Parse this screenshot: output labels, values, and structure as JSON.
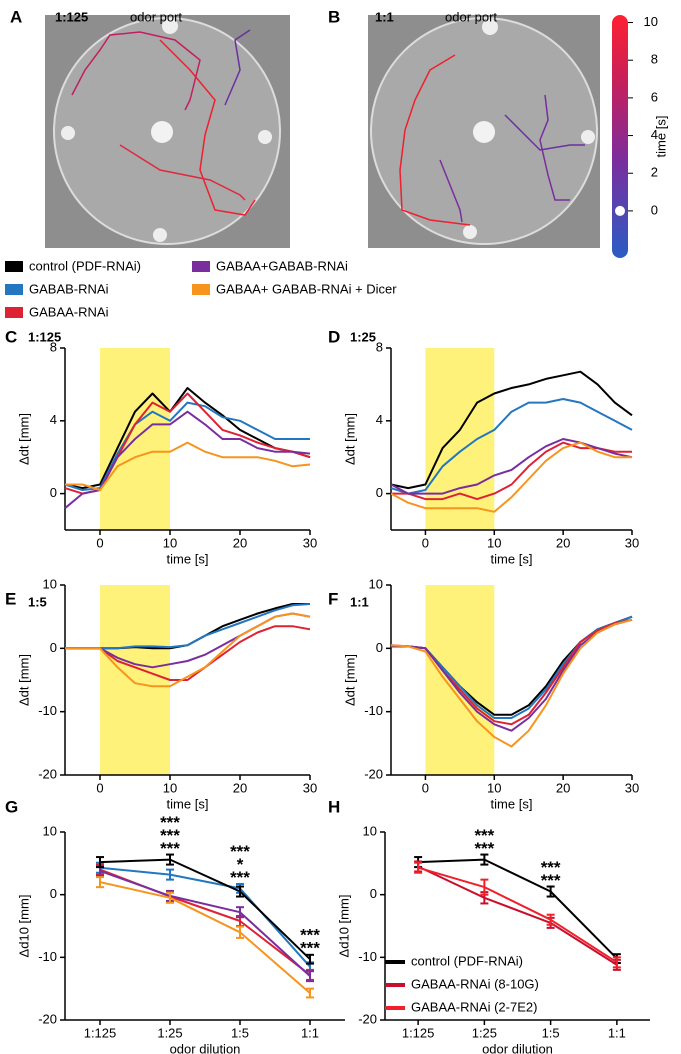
{
  "photo_panels": [
    {
      "panel": "A",
      "title": "1:125",
      "caption": "odor port"
    },
    {
      "panel": "B",
      "title": "1:1",
      "caption": "odor port"
    }
  ],
  "legend": [
    {
      "name": "control (PDF-RNAi)",
      "color": "#000000"
    },
    {
      "name": "GABAB-RNAi",
      "color": "#2277c0"
    },
    {
      "name": "GABAA-RNAi",
      "color": "#dd2233"
    },
    {
      "name": "GABAA+GABAB-RNAi",
      "color": "#7a2e9e"
    },
    {
      "name": "GABAA+ GABAB-RNAi + Dicer",
      "color": "#f7941d"
    }
  ],
  "chart_data": [
    {
      "type": "colorbar",
      "label": "time [s]",
      "lim": [
        -2.5,
        10.4
      ],
      "ticks": [
        0,
        2,
        4,
        6,
        8,
        10
      ]
    },
    {
      "type": "line",
      "panel": "C",
      "title": "1:125",
      "xlabel": "time [s]",
      "ylabel": "Δdt [mm]",
      "x": [
        -5,
        -2.5,
        0,
        2.5,
        5,
        7.5,
        10,
        12.5,
        15,
        17.5,
        20,
        22.5,
        25,
        27.5,
        30
      ],
      "xlim": [
        -5,
        30
      ],
      "xticks": [
        0,
        10,
        20,
        30
      ],
      "ylim": [
        -2,
        8
      ],
      "yticks": [
        0,
        4,
        8
      ],
      "stimulus": [
        0,
        10
      ],
      "series": [
        {
          "color": "#000000",
          "values": [
            0.5,
            0.3,
            0.5,
            2.5,
            4.5,
            5.5,
            4.5,
            5.8,
            5,
            4.3,
            3.5,
            3,
            2.5,
            2.3,
            2
          ]
        },
        {
          "color": "#2277c0",
          "values": [
            0.5,
            0.2,
            0.3,
            2.2,
            3.8,
            4.5,
            4,
            5,
            4.8,
            4.2,
            4,
            3.5,
            3,
            3,
            3
          ]
        },
        {
          "color": "#dd2233",
          "values": [
            0.3,
            0,
            0.2,
            2,
            3.8,
            5,
            4.5,
            5.5,
            4.5,
            3.5,
            3.2,
            2.8,
            2.5,
            2.3,
            2
          ]
        },
        {
          "color": "#7a2e9e",
          "values": [
            -0.8,
            0,
            0.2,
            2,
            3,
            3.8,
            3.8,
            4.5,
            3.8,
            3,
            3,
            2.5,
            2.3,
            2.3,
            2.2
          ]
        },
        {
          "color": "#f7941d",
          "values": [
            0.5,
            0.5,
            0.2,
            1.5,
            2,
            2.3,
            2.3,
            2.8,
            2.3,
            2,
            2,
            2,
            1.8,
            1.5,
            1.6
          ]
        }
      ]
    },
    {
      "type": "line",
      "panel": "D",
      "title": "1:25",
      "xlabel": "time [s]",
      "ylabel": "Δdt [mm]",
      "x": [
        -5,
        -2.5,
        0,
        2.5,
        5,
        7.5,
        10,
        12.5,
        15,
        17.5,
        20,
        22.5,
        25,
        27.5,
        30
      ],
      "xlim": [
        -5,
        30
      ],
      "xticks": [
        0,
        10,
        20,
        30
      ],
      "ylim": [
        -2,
        8
      ],
      "yticks": [
        0,
        4,
        8
      ],
      "stimulus": [
        0,
        10
      ],
      "series": [
        {
          "color": "#000000",
          "values": [
            0.5,
            0.3,
            0.5,
            2.5,
            3.5,
            5,
            5.5,
            5.8,
            6,
            6.3,
            6.5,
            6.7,
            6,
            5,
            4.3
          ]
        },
        {
          "color": "#2277c0",
          "values": [
            0.3,
            0,
            0.2,
            1.5,
            2.3,
            3,
            3.5,
            4.5,
            5,
            5,
            5.2,
            5,
            4.5,
            4,
            3.5
          ]
        },
        {
          "color": "#dd2233",
          "values": [
            0,
            0,
            -0.3,
            -0.3,
            0,
            -0.3,
            0,
            0.5,
            1.5,
            2.3,
            2.8,
            2.5,
            2.5,
            2.3,
            2.3
          ]
        },
        {
          "color": "#7a2e9e",
          "values": [
            0.5,
            0,
            0,
            0,
            0.3,
            0.5,
            1,
            1.3,
            2,
            2.6,
            3,
            2.8,
            2.5,
            2.2,
            2
          ]
        },
        {
          "color": "#f7941d",
          "values": [
            0,
            -0.5,
            -0.8,
            -0.8,
            -0.8,
            -0.8,
            -1,
            -0.2,
            0.8,
            1.8,
            2.5,
            2.8,
            2.3,
            2,
            2
          ]
        }
      ]
    },
    {
      "type": "line",
      "panel": "E",
      "title": "1:5",
      "xlabel": "time [s]",
      "ylabel": "Δdt [mm]",
      "x": [
        -5,
        -2.5,
        0,
        2.5,
        5,
        7.5,
        10,
        12.5,
        15,
        17.5,
        20,
        22.5,
        25,
        27.5,
        30
      ],
      "xlim": [
        -5,
        30
      ],
      "xticks": [
        0,
        10,
        20,
        30
      ],
      "ylim": [
        -20,
        10
      ],
      "yticks": [
        -20,
        -10,
        0,
        10
      ],
      "stimulus": [
        0,
        10
      ],
      "series": [
        {
          "color": "#000000",
          "values": [
            0,
            0,
            0,
            0,
            0.2,
            0,
            0,
            0.5,
            2,
            3.5,
            4.5,
            5.5,
            6.3,
            7,
            7
          ]
        },
        {
          "color": "#2277c0",
          "values": [
            0,
            0,
            0,
            0,
            0.3,
            0.3,
            0.2,
            0.5,
            2,
            3,
            4,
            5,
            6,
            6.8,
            7
          ]
        },
        {
          "color": "#dd2233",
          "values": [
            0,
            0,
            0,
            -2,
            -3,
            -4,
            -5,
            -5,
            -3,
            -1,
            1,
            2.5,
            3.5,
            3.5,
            3
          ]
        },
        {
          "color": "#7a2e9e",
          "values": [
            0,
            0,
            0,
            -1.5,
            -2.5,
            -3,
            -2.5,
            -2,
            -1,
            0.5,
            2,
            3.5,
            5,
            5.5,
            5
          ]
        },
        {
          "color": "#f7941d",
          "values": [
            0,
            0,
            0,
            -3,
            -5.5,
            -6,
            -6,
            -4.5,
            -3,
            -0.5,
            2,
            3.5,
            5,
            5.5,
            5
          ]
        }
      ]
    },
    {
      "type": "line",
      "panel": "F",
      "title": "1:1",
      "xlabel": "time [s]",
      "ylabel": "Δdt [mm]",
      "x": [
        -5,
        -2.5,
        0,
        2.5,
        5,
        7.5,
        10,
        12.5,
        15,
        17.5,
        20,
        22.5,
        25,
        27.5,
        30
      ],
      "xlim": [
        -5,
        30
      ],
      "xticks": [
        0,
        10,
        20,
        30
      ],
      "ylim": [
        -20,
        10
      ],
      "yticks": [
        -20,
        -10,
        0,
        10
      ],
      "stimulus": [
        0,
        10
      ],
      "series": [
        {
          "color": "#000000",
          "values": [
            0.3,
            0.3,
            0,
            -3,
            -6,
            -8.5,
            -10.5,
            -10.5,
            -9,
            -6,
            -2,
            1,
            3,
            4,
            5
          ]
        },
        {
          "color": "#2277c0",
          "values": [
            0.3,
            0.3,
            0,
            -3,
            -6,
            -9,
            -11,
            -11,
            -9.5,
            -6.5,
            -2.5,
            1,
            3,
            4,
            5
          ]
        },
        {
          "color": "#dd2233",
          "values": [
            0.5,
            0.3,
            0,
            -3.5,
            -6.5,
            -9.5,
            -11.5,
            -12,
            -10.5,
            -7,
            -3,
            1,
            2.8,
            4,
            4.5
          ]
        },
        {
          "color": "#7a2e9e",
          "values": [
            0.3,
            0.3,
            0,
            -3.5,
            -7,
            -10,
            -12,
            -13,
            -11,
            -8,
            -3.5,
            0.5,
            2.5,
            3.8,
            4.5
          ]
        },
        {
          "color": "#f7941d",
          "values": [
            0.5,
            0.3,
            -0.5,
            -4.5,
            -8,
            -11.5,
            -14,
            -15.5,
            -13,
            -9,
            -4,
            0,
            2.5,
            3.8,
            4.5
          ]
        }
      ]
    },
    {
      "type": "line",
      "panel": "G",
      "xlabel": "odor dilution",
      "ylabel": "Δd10 [mm]",
      "categories": [
        "1:125",
        "1:25",
        "1:5",
        "1:1"
      ],
      "ylim": [
        -20,
        10
      ],
      "yticks": [
        -20,
        -10,
        0,
        10
      ],
      "series": [
        {
          "color": "#2277c0",
          "values": [
            4.3,
            3.2,
            1.0,
            -11.5
          ],
          "errors": [
            0.8,
            0.8,
            0.7,
            0.7
          ]
        },
        {
          "color": "#dd2233",
          "values": [
            4.0,
            -0.3,
            -4.2,
            -12.8
          ],
          "errors": [
            0.8,
            0.8,
            0.8,
            0.8
          ]
        },
        {
          "color": "#7a2e9e",
          "values": [
            3.8,
            -0.2,
            -2.8,
            -13.0
          ],
          "errors": [
            0.8,
            0.8,
            0.8,
            0.8
          ]
        },
        {
          "color": "#f7941d",
          "values": [
            2.0,
            -0.5,
            -6.0,
            -15.7
          ],
          "errors": [
            0.8,
            0.8,
            0.9,
            0.7
          ]
        },
        {
          "color": "#000000",
          "values": [
            5.2,
            5.6,
            0.5,
            -10.3
          ],
          "errors": [
            0.8,
            0.8,
            0.8,
            0.7
          ]
        }
      ],
      "annotations": [
        [],
        [
          {
            "text": "***",
            "color": "#f7941d"
          },
          {
            "text": "***",
            "color": "#7a2e9e"
          },
          {
            "text": "***",
            "color": "#dd2233"
          }
        ],
        [
          {
            "text": "***",
            "color": "#f7941d"
          },
          {
            "text": "*",
            "color": "#7a2e9e"
          },
          {
            "text": "***",
            "color": "#dd2233"
          }
        ],
        [
          {
            "text": "***",
            "color": "#f7941d"
          },
          {
            "text": "***",
            "color": "#7a2e9e"
          }
        ]
      ]
    },
    {
      "type": "line",
      "panel": "H",
      "xlabel": "odor dilution",
      "ylabel": "Δd10 [mm]",
      "categories": [
        "1:125",
        "1:25",
        "1:5",
        "1:1"
      ],
      "ylim": [
        -20,
        10
      ],
      "yticks": [
        -20,
        -10,
        0,
        10
      ],
      "series": [
        {
          "name": "control (PDF-RNAi)",
          "color": "#000000",
          "values": [
            5.2,
            5.6,
            0.5,
            -10.2
          ],
          "errors": [
            0.8,
            0.8,
            0.8,
            0.7
          ]
        },
        {
          "name": "GABAA-RNAi (8-10G)",
          "color": "#c8102e",
          "values": [
            4.5,
            -0.5,
            -4.5,
            -11.2
          ],
          "errors": [
            0.8,
            0.9,
            0.8,
            0.8
          ]
        },
        {
          "name": "GABAA-RNAi (2-7E2)",
          "color": "#f0202a",
          "values": [
            4.3,
            1.2,
            -4.0,
            -10.8
          ],
          "errors": [
            0.8,
            1.2,
            0.8,
            0.8
          ]
        }
      ],
      "annotations": [
        [],
        [
          {
            "text": "***",
            "color": "#dd2233"
          },
          {
            "text": "***",
            "color": "#dd2233"
          }
        ],
        [
          {
            "text": "***",
            "color": "#dd2233"
          },
          {
            "text": "***",
            "color": "#dd2233"
          }
        ],
        []
      ]
    }
  ]
}
